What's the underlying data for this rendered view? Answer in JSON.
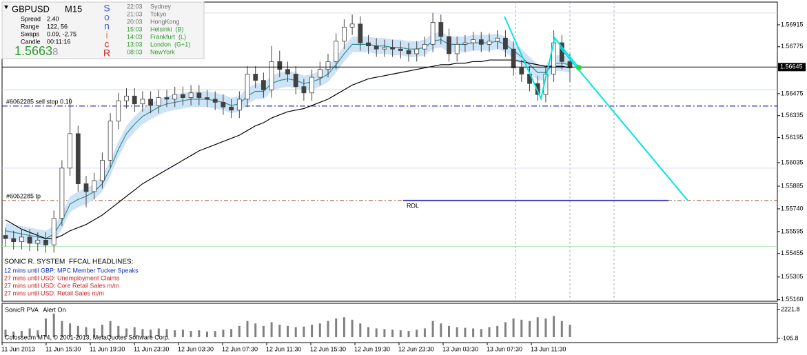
{
  "chart_data": {
    "type": "candlestick",
    "ylim": [
      1.5515,
      1.5706
    ],
    "yticks": [
      1.56915,
      1.56775,
      1.56475,
      1.56335,
      1.56195,
      1.56035,
      1.55885,
      {
        "value": 1.5574,
        "label": "1.55740"
      },
      1.55595,
      1.55455,
      1.55305,
      {
        "value": 1.5516,
        "label": "1.55160"
      }
    ],
    "bid": 1.56645,
    "up_color": "#ffffff",
    "down_color": "#404040",
    "wick_color": "#404040",
    "open": [
      1.5557,
      1.5555,
      1.5553,
      1.5556,
      1.5552,
      1.5554,
      1.5551,
      1.5568,
      1.56,
      1.5622,
      1.559,
      1.5585,
      1.5592,
      1.5605,
      1.563,
      1.5643,
      1.5646,
      1.5641,
      1.5644,
      1.564,
      1.5645,
      1.5644,
      1.5647,
      1.5645,
      1.5648,
      1.5645,
      1.5644,
      1.5642,
      1.5639,
      1.5637,
      1.5644,
      1.566,
      1.5656,
      1.565,
      1.5668,
      1.5663,
      1.566,
      1.5652,
      1.5648,
      1.5658,
      1.5663,
      1.5668,
      1.5681,
      1.569,
      1.5692,
      1.568,
      1.5678,
      1.5676,
      1.5677,
      1.5676,
      1.5675,
      1.5673,
      1.5676,
      1.5679,
      1.5693,
      1.5684,
      1.5673,
      1.5679,
      1.568,
      1.5682,
      1.5679,
      1.5681,
      1.5683,
      1.5676,
      1.5664,
      1.566,
      1.5654,
      1.5647,
      1.566,
      1.568,
      1.5668
    ],
    "high": [
      1.5562,
      1.556,
      1.5561,
      1.5561,
      1.5559,
      1.5559,
      1.5573,
      1.5605,
      1.5645,
      1.5627,
      1.5595,
      1.5597,
      1.561,
      1.5635,
      1.5648,
      1.5651,
      1.5651,
      1.5649,
      1.5649,
      1.565,
      1.565,
      1.5652,
      1.5652,
      1.5653,
      1.5653,
      1.565,
      1.5649,
      1.5647,
      1.5644,
      1.5649,
      1.5665,
      1.5665,
      1.5661,
      1.5678,
      1.5675,
      1.5668,
      1.5665,
      1.5657,
      1.5663,
      1.5668,
      1.5673,
      1.5686,
      1.5695,
      1.5698,
      1.5697,
      1.5685,
      1.5683,
      1.5682,
      1.5682,
      1.5681,
      1.568,
      1.5681,
      1.5684,
      1.5699,
      1.5698,
      1.5689,
      1.5684,
      1.5685,
      1.5687,
      1.5687,
      1.5686,
      1.5688,
      1.5688,
      1.5681,
      1.5669,
      1.5665,
      1.5659,
      1.5665,
      1.5688,
      1.5685,
      1.5673
    ],
    "low": [
      1.555,
      1.5548,
      1.5548,
      1.5547,
      1.5547,
      1.5546,
      1.5546,
      1.5563,
      1.5595,
      1.5585,
      1.5575,
      1.558,
      1.5587,
      1.56,
      1.5625,
      1.5638,
      1.5636,
      1.5636,
      1.5635,
      1.5635,
      1.5639,
      1.5639,
      1.564,
      1.564,
      1.564,
      1.5639,
      1.5637,
      1.5634,
      1.5632,
      1.5632,
      1.5639,
      1.5651,
      1.5645,
      1.5645,
      1.5658,
      1.5655,
      1.5647,
      1.5643,
      1.5643,
      1.5653,
      1.5658,
      1.5663,
      1.5676,
      1.5685,
      1.5675,
      1.5673,
      1.5671,
      1.5671,
      1.5671,
      1.567,
      1.5668,
      1.5668,
      1.5671,
      1.5674,
      1.5679,
      1.5668,
      1.5668,
      1.5674,
      1.5675,
      1.5674,
      1.5674,
      1.5676,
      1.5671,
      1.5659,
      1.5655,
      1.5649,
      1.5643,
      1.5642,
      1.5655,
      1.5663,
      1.5655
    ],
    "close": [
      1.5555,
      1.5553,
      1.5556,
      1.5552,
      1.5554,
      1.5551,
      1.5568,
      1.56,
      1.5622,
      1.559,
      1.5585,
      1.5592,
      1.5605,
      1.563,
      1.5643,
      1.5646,
      1.5641,
      1.5644,
      1.564,
      1.5645,
      1.5644,
      1.5647,
      1.5645,
      1.5648,
      1.5645,
      1.5644,
      1.5642,
      1.5639,
      1.5637,
      1.5644,
      1.566,
      1.5656,
      1.565,
      1.5668,
      1.5663,
      1.566,
      1.5652,
      1.5648,
      1.5658,
      1.5663,
      1.5668,
      1.5681,
      1.569,
      1.5692,
      1.568,
      1.5678,
      1.5676,
      1.5677,
      1.5676,
      1.5675,
      1.5673,
      1.5676,
      1.5679,
      1.5693,
      1.5684,
      1.5673,
      1.5679,
      1.568,
      1.5682,
      1.5679,
      1.5681,
      1.5683,
      1.5676,
      1.5664,
      1.566,
      1.5654,
      1.5647,
      1.566,
      1.568,
      1.5668,
      1.5664
    ],
    "series": [
      {
        "color": "#2f8f8f",
        "band": 0.0005,
        "band_color": "#cfe3f7",
        "values": [
          1.556,
          1.5559,
          1.5558,
          1.5557,
          1.5556,
          1.5555,
          1.5558,
          1.5566,
          1.5577,
          1.558,
          1.5582,
          1.5585,
          1.559,
          1.56,
          1.5612,
          1.5622,
          1.5628,
          1.5633,
          1.5636,
          1.5639,
          1.5641,
          1.5642,
          1.5643,
          1.5644,
          1.5644,
          1.5644,
          1.5643,
          1.5642,
          1.564,
          1.5641,
          1.5646,
          1.5649,
          1.5649,
          1.5654,
          1.5656,
          1.5657,
          1.5656,
          1.5654,
          1.5655,
          1.5657,
          1.566,
          1.5666,
          1.5673,
          1.5679,
          1.5679,
          1.5679,
          1.5678,
          1.5678,
          1.5677,
          1.5677,
          1.5676,
          1.5676,
          1.5677,
          1.5681,
          1.5682,
          1.5679,
          1.5679,
          1.5679,
          1.568,
          1.568,
          1.568,
          1.5681,
          1.5679,
          1.5675,
          1.5671,
          1.5666,
          1.5661,
          1.5661,
          1.5667,
          1.5667,
          1.5666
        ]
      },
      {
        "color": "#000000",
        "values": [
          1.5567,
          1.5564,
          1.5561,
          1.5559,
          1.5557,
          1.5555,
          1.5555,
          1.5557,
          1.556,
          1.5562,
          1.5564,
          1.5567,
          1.557,
          1.5574,
          1.5578,
          1.5582,
          1.5586,
          1.559,
          1.5593,
          1.5596,
          1.5599,
          1.5602,
          1.5605,
          1.5608,
          1.5611,
          1.5613,
          1.5615,
          1.5617,
          1.5619,
          1.5621,
          1.5624,
          1.5627,
          1.5629,
          1.5632,
          1.5634,
          1.5636,
          1.5637,
          1.5638,
          1.564,
          1.5642,
          1.5644,
          1.5647,
          1.565,
          1.5653,
          1.5655,
          1.5657,
          1.5658,
          1.5659,
          1.566,
          1.5661,
          1.5662,
          1.5663,
          1.5664,
          1.5665,
          1.5666,
          1.5666,
          1.5667,
          1.5667,
          1.5668,
          1.5668,
          1.5669,
          1.5669,
          1.5669,
          1.5669,
          1.5668,
          1.5667,
          1.5666,
          1.5665,
          1.5665,
          1.5665,
          1.5664
        ]
      }
    ],
    "levels": [
      {
        "value": 1.5699,
        "color": "#dcdcf5"
      },
      {
        "value": 1.565,
        "color": "#b8e6b8"
      },
      {
        "value": 1.56396,
        "color": "#00008b",
        "dash": "8 3 2 3",
        "label": "#6062285 sell stop 0.10"
      },
      {
        "value": 1.56,
        "color": "#dcdcf5"
      },
      {
        "value": 1.55793,
        "color": "#a0522d",
        "dash": "6 3 2 3",
        "label": "#6062285 tp"
      },
      {
        "value": 1.555,
        "color": "#b8e6b8"
      }
    ],
    "rdl": {
      "value": 1.55793,
      "label": "RDL",
      "color": "#4040c0"
    },
    "xtick_labels": [
      "11 Jun 2013",
      "11 Jun 15:30",
      "11 Jun 19:30",
      "11 Jun 23:30",
      "12 Jun 03:30",
      "12 Jun 07:30",
      "12 Jun 11:30",
      "12 Jun 15:30",
      "12 Jun 19:30",
      "12 Jun 23:30",
      "13 Jun 03:30",
      "13 Jun 07:30",
      "13 Jun 11:30"
    ],
    "volume": {
      "title": "SonicR PVA   Alert On",
      "color": "#808080",
      "ylim": [
        -105.8,
        2221.8
      ],
      "yticks": [
        2221.8,
        -105.8
      ],
      "values": [
        600,
        450,
        500,
        700,
        550,
        1500,
        1900,
        1300,
        1100,
        900,
        800,
        700,
        1000,
        1300,
        900,
        700,
        800,
        650,
        600,
        700,
        650,
        550,
        600,
        500,
        550,
        450,
        500,
        600,
        650,
        900,
        1300,
        1100,
        900,
        1200,
        1000,
        900,
        800,
        850,
        1000,
        1100,
        1300,
        1500,
        1600,
        1400,
        1100,
        800,
        700,
        650,
        600,
        550,
        500,
        600,
        700,
        1300,
        1100,
        900,
        800,
        750,
        700,
        650,
        800,
        900,
        1200,
        1500,
        1400,
        1300,
        1600,
        1500,
        1700,
        1300,
        1000
      ]
    }
  },
  "info": {
    "symbol": "GBPUSD",
    "timeframe": "M15",
    "rows": [
      [
        "Spread",
        "2.40"
      ],
      [
        "Range",
        "122, 56"
      ],
      [
        "Swaps",
        "0.09, -2.75"
      ],
      [
        "Candle",
        "00:11:16"
      ]
    ],
    "price_main": "1.5663",
    "price_last": "8"
  },
  "sonic_letters": [
    {
      "text": "S",
      "color": "#3050d0"
    },
    {
      "text": "o",
      "color": "#5070e0"
    },
    {
      "text": "n",
      "color": "#4060d0"
    },
    {
      "text": "i",
      "color": "#e08020"
    },
    {
      "text": "c",
      "color": "#d03030"
    },
    {
      "text": "R",
      "color": "#c02020"
    }
  ],
  "sessions": [
    {
      "time": "22:03",
      "name": "Sydney",
      "color": "#707070"
    },
    {
      "time": "21:03",
      "name": "Tokyo",
      "color": "#707070"
    },
    {
      "time": "20:03",
      "name": "HongKong",
      "color": "#707070"
    },
    {
      "time": "15:03",
      "name": "Helsinki  (B)",
      "color": "#2e9a2e"
    },
    {
      "time": "14:03",
      "name": "Frankfurt  (L)",
      "color": "#2e9a2e"
    },
    {
      "time": "13:03",
      "name": "London  (G+1)",
      "color": "#2e9a2e"
    },
    {
      "time": "08:03",
      "name": "NewYork",
      "color": "#2e9a2e"
    }
  ],
  "headlines": {
    "title": "SONIC R. SYSTEM  FFCAL HEADLINES:",
    "items": [
      {
        "text": "12 mins until GBP: MPC Member Tucker Speaks",
        "color": "#1030c0"
      },
      {
        "text": "27 mins until USD: Unemployment Claims",
        "color": "#d02020"
      },
      {
        "text": "27 mins until USD: Core Retail Sales m/m",
        "color": "#d02020"
      },
      {
        "text": "27 mins until USD: Retail Sales m/m",
        "color": "#d02020"
      }
    ]
  },
  "copyright": "Colosseum MT4, © 2001-2013, MetaQuotes Software Corp."
}
